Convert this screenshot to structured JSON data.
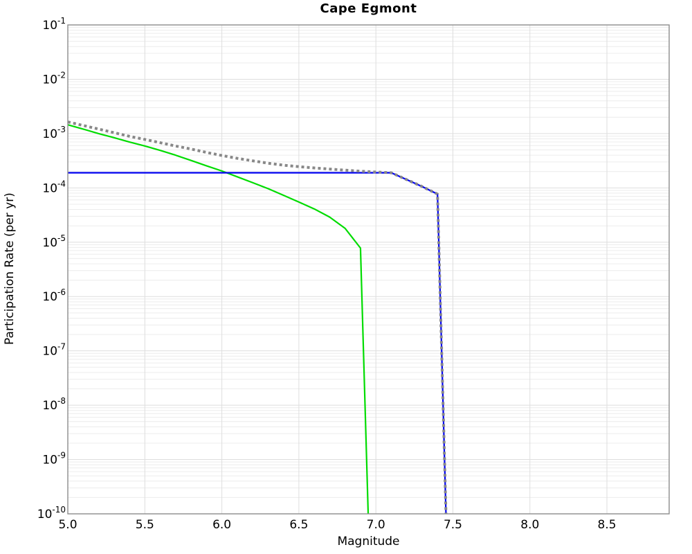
{
  "chart_data": {
    "type": "line",
    "title": "Cape Egmont",
    "xlabel": "Magnitude",
    "ylabel": "Participation Rate (per yr)",
    "xlim": [
      5.0,
      8.904
    ],
    "ylim": [
      1e-10,
      0.1
    ],
    "x_ticks": [
      "5.0",
      "5.5",
      "6.0",
      "6.5",
      "7.0",
      "7.5",
      "8.0",
      "8.5"
    ],
    "x_tick_values": [
      5.0,
      5.5,
      6.0,
      6.5,
      7.0,
      7.5,
      8.0,
      8.5
    ],
    "y_tick_base": "10",
    "y_tick_exponents": [
      "-1",
      "-2",
      "-3",
      "-4",
      "-5",
      "-6",
      "-7",
      "-8",
      "-9",
      "-10"
    ],
    "grid": true,
    "legend": "none",
    "colors": {
      "gray_dotted": "#888888",
      "blue_solid": "#0000f0",
      "green_solid": "#00dc00",
      "grid_minor": "#ececec",
      "grid_major": "#dedede",
      "plot_border": "#8c8c8c",
      "text": "#000000"
    },
    "series": [
      {
        "name": "green-solid",
        "style": "solid",
        "color_key": "green_solid",
        "width": 2.2,
        "points": [
          [
            5.0,
            0.00145
          ],
          [
            5.1,
            0.00121
          ],
          [
            5.2,
            0.001
          ],
          [
            5.3,
            0.00084
          ],
          [
            5.4,
            0.0007
          ],
          [
            5.5,
            0.00059
          ],
          [
            5.6,
            0.00049
          ],
          [
            5.7,
            0.0004
          ],
          [
            5.8,
            0.00032
          ],
          [
            5.9,
            0.000255
          ],
          [
            6.0,
            0.000205
          ],
          [
            6.1,
            0.00016
          ],
          [
            6.2,
            0.000125
          ],
          [
            6.3,
            9.7e-05
          ],
          [
            6.4,
            7.3e-05
          ],
          [
            6.5,
            5.5e-05
          ],
          [
            6.6,
            4.1e-05
          ],
          [
            6.7,
            2.9e-05
          ],
          [
            6.8,
            1.8e-05
          ],
          [
            6.9,
            7.8e-06
          ],
          [
            6.95,
            1e-10
          ]
        ]
      },
      {
        "name": "blue-solid",
        "style": "solid",
        "color_key": "blue_solid",
        "width": 2.2,
        "points": [
          [
            5.0,
            0.00019
          ],
          [
            7.1,
            0.00019
          ],
          [
            7.2,
            0.000142
          ],
          [
            7.3,
            0.000106
          ],
          [
            7.4,
            7.7e-05
          ],
          [
            7.455,
            1e-10
          ]
        ]
      },
      {
        "name": "gray-dotted",
        "style": "dotted",
        "color_key": "gray_dotted",
        "width": 4,
        "points": [
          [
            5.0,
            0.00164
          ],
          [
            5.1,
            0.00141
          ],
          [
            5.2,
            0.00121
          ],
          [
            5.3,
            0.00104
          ],
          [
            5.4,
            0.00089
          ],
          [
            5.5,
            0.00078
          ],
          [
            5.6,
            0.00068
          ],
          [
            5.7,
            0.00059
          ],
          [
            5.8,
            0.00052
          ],
          [
            5.9,
            0.00045
          ],
          [
            6.0,
            0.000395
          ],
          [
            6.1,
            0.00035
          ],
          [
            6.2,
            0.000315
          ],
          [
            6.3,
            0.000285
          ],
          [
            6.4,
            0.000262
          ],
          [
            6.5,
            0.000246
          ],
          [
            6.6,
            0.000233
          ],
          [
            6.7,
            0.000222
          ],
          [
            6.8,
            0.000212
          ],
          [
            6.9,
            0.000203
          ],
          [
            7.0,
            0.000196
          ],
          [
            7.1,
            0.00019
          ],
          [
            7.2,
            0.000142
          ],
          [
            7.3,
            0.000106
          ],
          [
            7.4,
            7.7e-05
          ],
          [
            7.455,
            1e-10
          ]
        ]
      }
    ]
  }
}
